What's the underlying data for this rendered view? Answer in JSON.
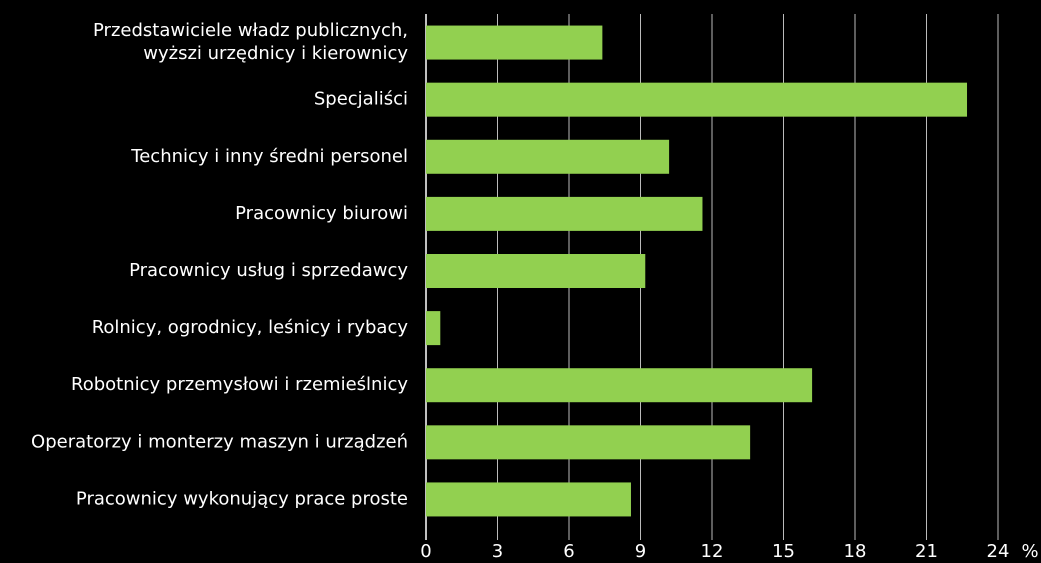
{
  "chart_data": {
    "type": "bar",
    "orientation": "horizontal",
    "categories": [
      "Przedstawiciele władz publicznych,\nwyższi urzędnicy i kierownicy",
      "Specjaliści",
      "Technicy i inny średni personel",
      "Pracownicy biurowi",
      "Pracownicy usług i sprzedawcy",
      "Rolnicy, ogrodnicy, leśnicy i rybacy",
      "Robotnicy przemysłowi i rzemieślnicy",
      "Operatorzy i monterzy maszyn i urządzeń",
      "Pracownicy wykonujący prace proste"
    ],
    "values": [
      7.4,
      22.7,
      10.2,
      11.6,
      9.2,
      0.6,
      16.2,
      13.6,
      8.6
    ],
    "color": "#92d050",
    "xlabel": "%",
    "xlim": [
      0,
      24
    ],
    "xticks": [
      0,
      3,
      6,
      9,
      12,
      15,
      18,
      21,
      24
    ],
    "grid": true
  }
}
